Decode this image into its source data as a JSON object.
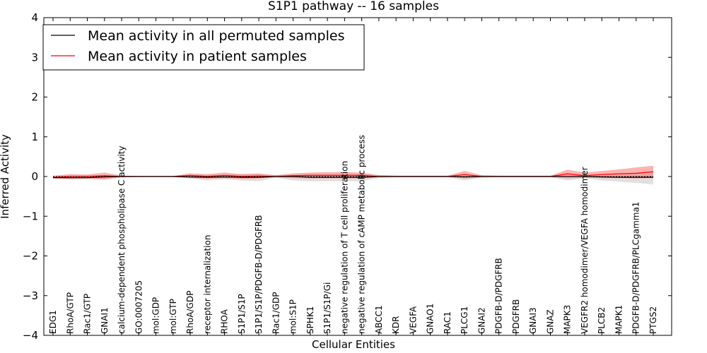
{
  "chart_data": {
    "type": "line",
    "title": "S1P1 pathway -- 16 samples",
    "xlabel": "Cellular Entities",
    "ylabel": "Inferred Activity",
    "ylim": [
      -4,
      4
    ],
    "yticks": [
      -4,
      -3,
      -2,
      -1,
      0,
      1,
      2,
      3,
      4
    ],
    "ytick_labels": [
      "−4",
      "−3",
      "−2",
      "−1",
      "0",
      "1",
      "2",
      "3",
      "4"
    ],
    "legend_position": "top-left",
    "categories": [
      "EDG1",
      "RhoA/GTP",
      "Rac1/GTP",
      "GNAI1",
      "calcium-dependent phospholipase C activity",
      "GO:0007205",
      "mol:GDP",
      "mol:GTP",
      "RhoA/GDP",
      "receptor internalization",
      "RHOA",
      "S1P1/S1P",
      "S1P1/S1P/PDGFB-D/PDGFRB",
      "Rac1/GDP",
      "mol:S1P",
      "SPHK1",
      "S1P1/S1P/Gi",
      "negative regulation of T cell proliferation",
      "negative regulation of cAMP metabolic process",
      "ABCC1",
      "KDR",
      "VEGFA",
      "GNAO1",
      "RAC1",
      "PLCG1",
      "GNAI2",
      "PDGFB-D/PDGFRB",
      "PDGFRB",
      "GNAI3",
      "GNAZ",
      "MAPK3",
      "VEGFR2 homodimer/VEGFA homodimer",
      "PLCB2",
      "MAPK1",
      "PDGFB-D/PDGFRB/PLCgamma1",
      "PTGS2"
    ],
    "series": [
      {
        "name": "Mean activity in all permuted samples",
        "color": "#000000",
        "values": [
          -0.03,
          -0.03,
          -0.03,
          -0.01,
          0.0,
          0.0,
          0.0,
          0.0,
          -0.01,
          -0.02,
          -0.01,
          -0.02,
          -0.02,
          0.0,
          0.0,
          -0.02,
          -0.02,
          -0.02,
          -0.02,
          0.0,
          0.0,
          0.0,
          0.0,
          0.0,
          -0.01,
          0.0,
          0.0,
          0.0,
          0.0,
          0.0,
          0.0,
          0.0,
          -0.01,
          -0.02,
          -0.02,
          -0.02
        ],
        "band_lower": [
          -0.05,
          -0.08,
          -0.07,
          -0.06,
          -0.02,
          -0.01,
          -0.01,
          -0.01,
          -0.05,
          -0.1,
          -0.07,
          -0.1,
          -0.12,
          -0.03,
          -0.1,
          -0.12,
          -0.12,
          -0.12,
          -0.12,
          -0.04,
          -0.02,
          -0.02,
          -0.02,
          -0.02,
          -0.1,
          -0.03,
          -0.02,
          -0.02,
          -0.02,
          -0.02,
          -0.1,
          -0.05,
          -0.1,
          -0.13,
          -0.16,
          -0.2
        ],
        "band_upper": [
          0.0,
          0.02,
          0.02,
          0.03,
          0.02,
          0.01,
          0.01,
          0.01,
          0.03,
          0.05,
          0.05,
          0.06,
          0.06,
          0.04,
          0.05,
          0.07,
          0.07,
          0.07,
          0.07,
          0.04,
          0.02,
          0.02,
          0.02,
          0.02,
          0.05,
          0.03,
          0.02,
          0.02,
          0.02,
          0.02,
          0.06,
          0.05,
          0.06,
          0.08,
          0.1,
          0.14
        ]
      },
      {
        "name": "Mean activity in patient samples",
        "color": "#ff0000",
        "values": [
          -0.02,
          0.0,
          0.0,
          0.02,
          0.0,
          0.0,
          0.0,
          0.0,
          0.03,
          0.0,
          0.03,
          0.0,
          0.01,
          0.0,
          0.02,
          0.03,
          0.03,
          0.03,
          0.03,
          0.0,
          0.0,
          0.0,
          0.0,
          0.0,
          0.05,
          0.0,
          0.0,
          0.0,
          0.0,
          0.0,
          0.07,
          0.02,
          0.05,
          0.07,
          0.08,
          0.12
        ],
        "band_lower": [
          -0.05,
          -0.06,
          -0.05,
          -0.08,
          -0.02,
          -0.01,
          -0.01,
          -0.01,
          -0.04,
          -0.05,
          -0.04,
          -0.06,
          -0.05,
          -0.02,
          -0.04,
          -0.05,
          -0.05,
          -0.05,
          -0.05,
          -0.02,
          -0.01,
          -0.01,
          -0.01,
          -0.01,
          -0.05,
          -0.02,
          -0.01,
          -0.01,
          -0.01,
          -0.01,
          -0.05,
          -0.03,
          -0.04,
          -0.04,
          -0.05,
          -0.04
        ],
        "band_upper": [
          0.02,
          0.06,
          0.05,
          0.1,
          0.02,
          0.01,
          0.01,
          0.01,
          0.08,
          0.06,
          0.1,
          0.06,
          0.08,
          0.03,
          0.08,
          0.1,
          0.11,
          0.11,
          0.1,
          0.03,
          0.02,
          0.02,
          0.02,
          0.02,
          0.14,
          0.03,
          0.02,
          0.02,
          0.02,
          0.02,
          0.17,
          0.1,
          0.14,
          0.18,
          0.23,
          0.27
        ]
      }
    ]
  }
}
